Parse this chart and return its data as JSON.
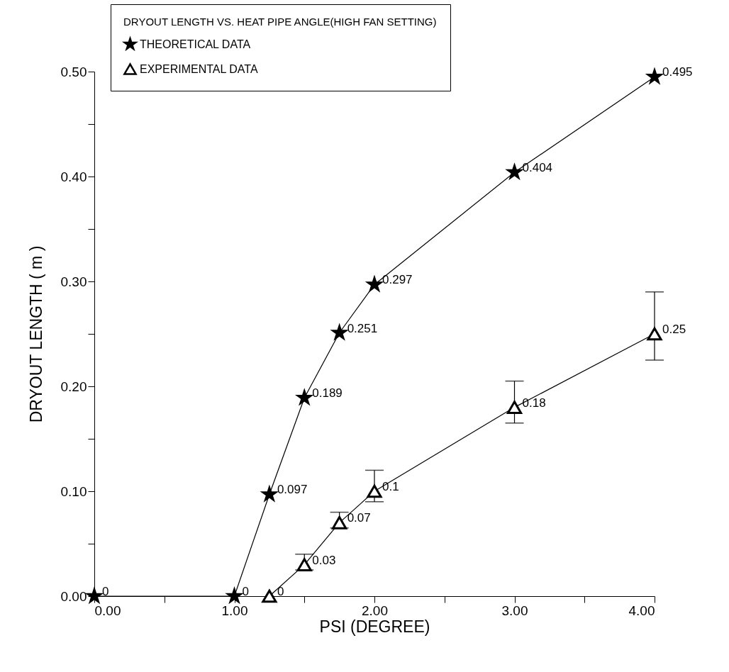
{
  "chart_data": {
    "type": "line",
    "legend_title": "DRYOUT LENGTH VS. HEAT PIPE ANGLE(HIGH FAN SETTING)",
    "xlabel": "PSI (DEGREE)",
    "ylabel": "DRYOUT LENGTH ( m )",
    "series": [
      {
        "name": "THEORETICAL DATA",
        "color": "#000000",
        "marker": "star",
        "x": [
          0,
          1,
          1.25,
          1.5,
          1.75,
          2,
          3,
          4
        ],
        "values": [
          0,
          0,
          0.097,
          0.189,
          0.251,
          0.297,
          0.404,
          0.495
        ]
      },
      {
        "name": "EXPERIMENTAL DATA",
        "color": "#000000",
        "marker": "triangle",
        "x": [
          1.25,
          1.5,
          1.75,
          2,
          3,
          4
        ],
        "values": [
          0,
          0.03,
          0.07,
          0.1,
          0.18,
          0.25
        ],
        "errors": [
          null,
          [
            0.025,
            0.04
          ],
          [
            0.065,
            0.08
          ],
          [
            0.09,
            0.12
          ],
          [
            0.165,
            0.205
          ],
          [
            0.225,
            0.29
          ]
        ]
      }
    ],
    "data_labels": true,
    "xlim": [
      0,
      4
    ],
    "ylim": [
      0,
      0.5
    ],
    "xticks": [
      {
        "value": 0,
        "label": "0.00"
      },
      {
        "value": 0.5,
        "label": null
      },
      {
        "value": 1,
        "label": "1.00"
      },
      {
        "value": 1.5,
        "label": null
      },
      {
        "value": 2,
        "label": "2.00"
      },
      {
        "value": 2.5,
        "label": null
      },
      {
        "value": 3,
        "label": "3.00"
      },
      {
        "value": 3.5,
        "label": null
      },
      {
        "value": 4,
        "label": "4.00"
      }
    ],
    "yticks": [
      {
        "value": 0,
        "label": "0.00"
      },
      {
        "value": 0.05,
        "label": null
      },
      {
        "value": 0.1,
        "label": "0.10"
      },
      {
        "value": 0.15,
        "label": null
      },
      {
        "value": 0.2,
        "label": "0.20"
      },
      {
        "value": 0.25,
        "label": null
      },
      {
        "value": 0.3,
        "label": "0.30"
      },
      {
        "value": 0.35,
        "label": null
      },
      {
        "value": 0.4,
        "label": "0.40"
      },
      {
        "value": 0.45,
        "label": null
      },
      {
        "value": 0.5,
        "label": "0.50"
      }
    ],
    "grid": false,
    "legend": "top left",
    "line_style": "solid"
  }
}
